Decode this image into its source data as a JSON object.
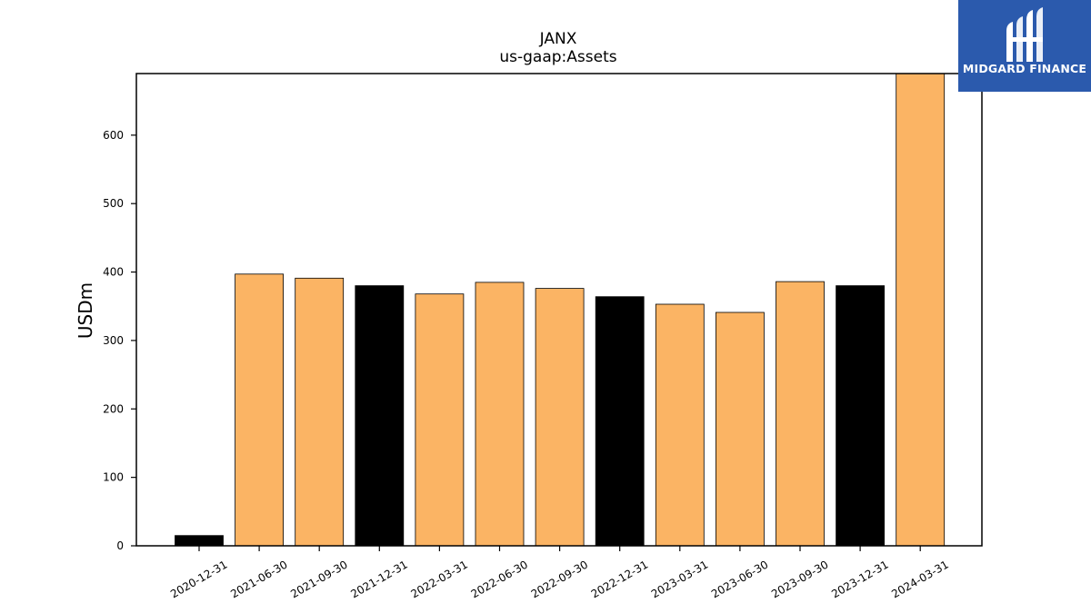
{
  "logo": {
    "text": "MIDGARD FINANCE",
    "color": "#2b5aad"
  },
  "chart_data": {
    "type": "bar",
    "title": "JANX",
    "subtitle": "us-gaap:Assets",
    "ylabel": "USDm",
    "xlabel": "",
    "ylim": [
      0,
      690
    ],
    "yticks": [
      0,
      100,
      200,
      300,
      400,
      500,
      600
    ],
    "grid": false,
    "categories": [
      "2020-12-31",
      "2021-06-30",
      "2021-09-30",
      "2021-12-31",
      "2022-03-31",
      "2022-06-30",
      "2022-09-30",
      "2022-12-31",
      "2023-03-31",
      "2023-06-30",
      "2023-09-30",
      "2023-12-31",
      "2024-03-31"
    ],
    "values": [
      15,
      397,
      391,
      380,
      368,
      385,
      376,
      364,
      353,
      341,
      386,
      380,
      695
    ],
    "bar_colors": [
      "#000000",
      "#fbb464",
      "#fbb464",
      "#000000",
      "#fbb464",
      "#fbb464",
      "#fbb464",
      "#000000",
      "#fbb464",
      "#fbb464",
      "#fbb464",
      "#000000",
      "#fbb464"
    ]
  }
}
